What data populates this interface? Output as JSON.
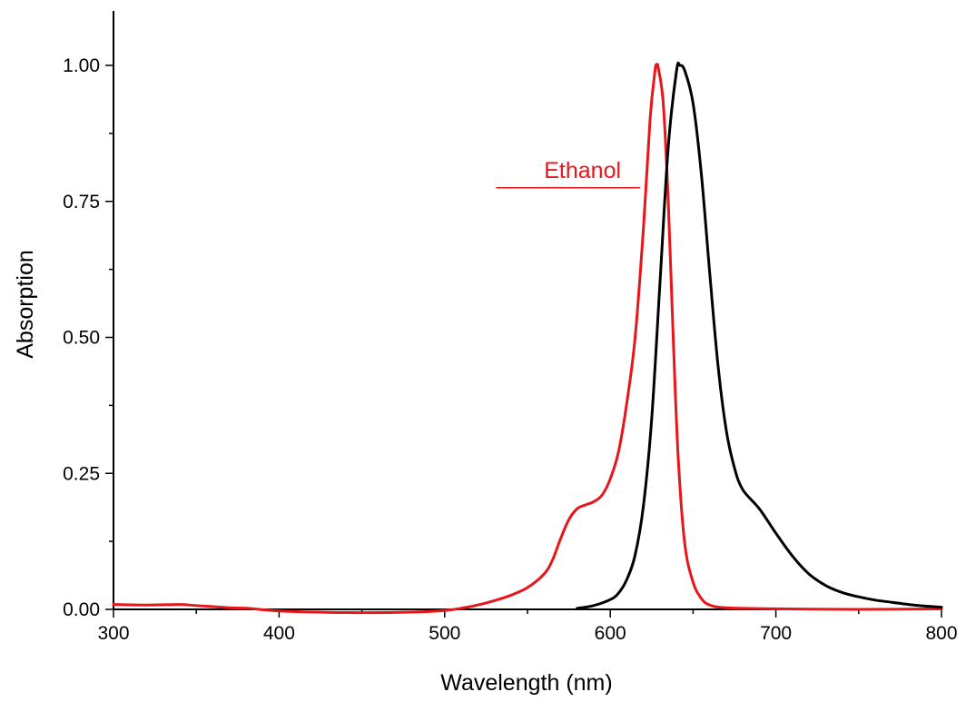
{
  "chart_data": {
    "type": "line",
    "title": "",
    "xlabel": "Wavelength (nm)",
    "ylabel": "Absorption",
    "xlim": [
      300,
      800
    ],
    "ylim": [
      -0.01,
      1.1
    ],
    "x_ticks": [
      300,
      400,
      500,
      600,
      700,
      800
    ],
    "x_tick_labels": [
      "300",
      "400",
      "500",
      "600",
      "700",
      "800"
    ],
    "y_ticks": [
      0.0,
      0.25,
      0.5,
      0.75,
      1.0
    ],
    "y_tick_labels": [
      "0.00",
      "0.25",
      "0.50",
      "0.75",
      "1.00"
    ],
    "grid": false,
    "annotations": [
      {
        "text": "Ethanol",
        "color": "#e8161b",
        "leader_from": [
          531,
          0.775
        ],
        "leader_to": [
          618,
          0.775
        ],
        "text_at": [
          560,
          0.8
        ]
      }
    ],
    "series": [
      {
        "color": "#e8161b",
        "points": [
          [
            300,
            0.009
          ],
          [
            320,
            0.008
          ],
          [
            340,
            0.009
          ],
          [
            350,
            0.007
          ],
          [
            370,
            0.003
          ],
          [
            380,
            0.002
          ],
          [
            400,
            -0.003
          ],
          [
            420,
            -0.005
          ],
          [
            450,
            -0.006
          ],
          [
            480,
            -0.005
          ],
          [
            500,
            -0.002
          ],
          [
            510,
            0.002
          ],
          [
            520,
            0.008
          ],
          [
            530,
            0.016
          ],
          [
            540,
            0.026
          ],
          [
            550,
            0.04
          ],
          [
            560,
            0.065
          ],
          [
            565,
            0.09
          ],
          [
            570,
            0.13
          ],
          [
            575,
            0.165
          ],
          [
            580,
            0.185
          ],
          [
            585,
            0.192
          ],
          [
            590,
            0.198
          ],
          [
            595,
            0.21
          ],
          [
            600,
            0.24
          ],
          [
            605,
            0.29
          ],
          [
            610,
            0.38
          ],
          [
            615,
            0.5
          ],
          [
            620,
            0.7
          ],
          [
            624,
            0.9
          ],
          [
            627,
            0.99
          ],
          [
            628,
            1.0
          ],
          [
            629,
            0.995
          ],
          [
            632,
            0.93
          ],
          [
            635,
            0.75
          ],
          [
            638,
            0.5
          ],
          [
            641,
            0.28
          ],
          [
            645,
            0.12
          ],
          [
            650,
            0.05
          ],
          [
            655,
            0.02
          ],
          [
            660,
            0.008
          ],
          [
            670,
            0.003
          ],
          [
            700,
            0.001
          ],
          [
            750,
            0.0
          ],
          [
            800,
            0.001
          ]
        ]
      },
      {
        "color": "#000000",
        "points": [
          [
            580,
            0.002
          ],
          [
            590,
            0.007
          ],
          [
            600,
            0.018
          ],
          [
            605,
            0.03
          ],
          [
            610,
            0.055
          ],
          [
            615,
            0.1
          ],
          [
            620,
            0.19
          ],
          [
            625,
            0.35
          ],
          [
            630,
            0.6
          ],
          [
            635,
            0.85
          ],
          [
            640,
            0.99
          ],
          [
            642,
            1.0
          ],
          [
            645,
            0.99
          ],
          [
            650,
            0.93
          ],
          [
            655,
            0.8
          ],
          [
            660,
            0.62
          ],
          [
            665,
            0.45
          ],
          [
            670,
            0.33
          ],
          [
            675,
            0.26
          ],
          [
            680,
            0.22
          ],
          [
            690,
            0.185
          ],
          [
            700,
            0.14
          ],
          [
            710,
            0.098
          ],
          [
            720,
            0.065
          ],
          [
            730,
            0.044
          ],
          [
            740,
            0.031
          ],
          [
            750,
            0.023
          ],
          [
            760,
            0.017
          ],
          [
            770,
            0.013
          ],
          [
            780,
            0.009
          ],
          [
            790,
            0.006
          ],
          [
            800,
            0.004
          ]
        ]
      }
    ]
  }
}
